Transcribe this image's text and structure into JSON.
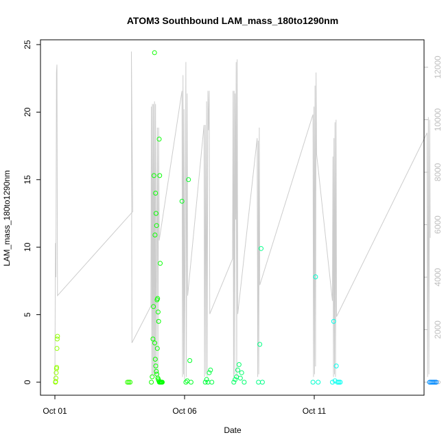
{
  "chart_data": {
    "type": "scatter",
    "title": "ATOM3 Southbound LAM_mass_180to1290nm",
    "xlabel": "Date",
    "ylabel": "LAM_mass_180to1290nm",
    "x_unit": "days since Sep 30",
    "xlim": [
      1,
      15.9
    ],
    "ylim": [
      0,
      25
    ],
    "y_ticks": [
      0,
      5,
      10,
      15,
      20,
      25
    ],
    "x_ticks": [
      {
        "value": 1,
        "label": "Oct 01"
      },
      {
        "value": 6,
        "label": "Oct 06"
      },
      {
        "value": 11,
        "label": "Oct 11"
      }
    ],
    "y2lim": [
      0,
      12500
    ],
    "y2_ticks": [
      0,
      2000,
      4000,
      6000,
      8000,
      10000,
      12000
    ],
    "grid": false,
    "series": [
      {
        "name": "LAM_mass_180to1290nm",
        "style": "open-circles",
        "points": [
          {
            "x": 1.02,
            "y": 0
          },
          {
            "x": 1.03,
            "y": 0.05
          },
          {
            "x": 1.04,
            "y": 0.3
          },
          {
            "x": 1.05,
            "y": 0.7
          },
          {
            "x": 1.06,
            "y": 1.0
          },
          {
            "x": 1.07,
            "y": 1.1
          },
          {
            "x": 1.08,
            "y": 2.5
          },
          {
            "x": 1.09,
            "y": 3.2
          },
          {
            "x": 1.1,
            "y": 3.4
          },
          {
            "x": 3.8,
            "y": 0
          },
          {
            "x": 3.85,
            "y": 0
          },
          {
            "x": 3.9,
            "y": 0
          },
          {
            "x": 4.72,
            "y": 0
          },
          {
            "x": 4.75,
            "y": 0.4
          },
          {
            "x": 4.78,
            "y": 3.2
          },
          {
            "x": 4.8,
            "y": 5.6
          },
          {
            "x": 4.82,
            "y": 15.3
          },
          {
            "x": 4.84,
            "y": 24.4
          },
          {
            "x": 4.86,
            "y": 10.9
          },
          {
            "x": 4.88,
            "y": 14.0
          },
          {
            "x": 4.9,
            "y": 12.5
          },
          {
            "x": 4.92,
            "y": 11.6
          },
          {
            "x": 4.94,
            "y": 6.1
          },
          {
            "x": 4.96,
            "y": 6.2
          },
          {
            "x": 4.98,
            "y": 5.2
          },
          {
            "x": 5.0,
            "y": 4.5
          },
          {
            "x": 5.02,
            "y": 18.0
          },
          {
            "x": 5.04,
            "y": 15.3
          },
          {
            "x": 5.06,
            "y": 8.8
          },
          {
            "x": 4.85,
            "y": 2.9
          },
          {
            "x": 4.87,
            "y": 1.7
          },
          {
            "x": 4.89,
            "y": 1.2
          },
          {
            "x": 4.91,
            "y": 0.8
          },
          {
            "x": 4.93,
            "y": 0.6
          },
          {
            "x": 4.95,
            "y": 2.5
          },
          {
            "x": 4.97,
            "y": 0.3
          },
          {
            "x": 4.99,
            "y": 0.2
          },
          {
            "x": 5.01,
            "y": 0.1
          },
          {
            "x": 5.03,
            "y": 0
          },
          {
            "x": 5.05,
            "y": 0
          },
          {
            "x": 5.08,
            "y": 0
          },
          {
            "x": 5.1,
            "y": 0
          },
          {
            "x": 5.12,
            "y": 0
          },
          {
            "x": 5.14,
            "y": 0
          },
          {
            "x": 5.9,
            "y": 13.4
          },
          {
            "x": 6.05,
            "y": 0
          },
          {
            "x": 6.1,
            "y": 0.1
          },
          {
            "x": 6.15,
            "y": 15.0
          },
          {
            "x": 6.2,
            "y": 1.6
          },
          {
            "x": 6.25,
            "y": 0
          },
          {
            "x": 6.8,
            "y": 0
          },
          {
            "x": 6.85,
            "y": 0.2
          },
          {
            "x": 6.9,
            "y": 0
          },
          {
            "x": 6.95,
            "y": 0.7
          },
          {
            "x": 7.0,
            "y": 0.9
          },
          {
            "x": 7.05,
            "y": 0
          },
          {
            "x": 7.9,
            "y": 0
          },
          {
            "x": 7.95,
            "y": 0.2
          },
          {
            "x": 8.0,
            "y": 0.4
          },
          {
            "x": 8.05,
            "y": 0.9
          },
          {
            "x": 8.1,
            "y": 1.3
          },
          {
            "x": 8.15,
            "y": 0.3
          },
          {
            "x": 8.2,
            "y": 0.7
          },
          {
            "x": 8.3,
            "y": 0
          },
          {
            "x": 8.85,
            "y": 0
          },
          {
            "x": 8.9,
            "y": 2.8
          },
          {
            "x": 8.95,
            "y": 9.9
          },
          {
            "x": 9.0,
            "y": 0
          },
          {
            "x": 10.95,
            "y": 0
          },
          {
            "x": 11.05,
            "y": 7.8
          },
          {
            "x": 11.15,
            "y": 0
          },
          {
            "x": 11.7,
            "y": 0
          },
          {
            "x": 11.75,
            "y": 4.5
          },
          {
            "x": 11.8,
            "y": 0.1
          },
          {
            "x": 11.85,
            "y": 1.2
          },
          {
            "x": 11.9,
            "y": 0
          },
          {
            "x": 11.95,
            "y": 0
          },
          {
            "x": 12.0,
            "y": 0
          },
          {
            "x": 15.45,
            "y": 0
          },
          {
            "x": 15.5,
            "y": 0
          },
          {
            "x": 15.55,
            "y": 0
          },
          {
            "x": 15.6,
            "y": 0
          },
          {
            "x": 15.65,
            "y": 0
          },
          {
            "x": 15.7,
            "y": 0
          }
        ]
      },
      {
        "name": "altitude (right axis)",
        "style": "line",
        "axis": "right",
        "points": [
          {
            "x": 1.0,
            "y": 0
          },
          {
            "x": 1.02,
            "y": 5300
          },
          {
            "x": 1.04,
            "y": 4000
          },
          {
            "x": 1.06,
            "y": 11800
          },
          {
            "x": 1.08,
            "y": 12100
          },
          {
            "x": 1.1,
            "y": 3300
          },
          {
            "x": 4.0,
            "y": 6500
          },
          {
            "x": 3.95,
            "y": 12600
          },
          {
            "x": 3.97,
            "y": 1500
          },
          {
            "x": 4.7,
            "y": 2900
          },
          {
            "x": 4.72,
            "y": 10500
          },
          {
            "x": 4.74,
            "y": 200
          },
          {
            "x": 4.76,
            "y": 10600
          },
          {
            "x": 4.78,
            "y": 300
          },
          {
            "x": 4.8,
            "y": 10600
          },
          {
            "x": 4.82,
            "y": 200
          },
          {
            "x": 4.84,
            "y": 10700
          },
          {
            "x": 4.86,
            "y": 300
          },
          {
            "x": 4.88,
            "y": 10600
          },
          {
            "x": 4.9,
            "y": 100
          },
          {
            "x": 4.95,
            "y": 9700
          },
          {
            "x": 4.97,
            "y": 200
          },
          {
            "x": 5.0,
            "y": 9700
          },
          {
            "x": 5.02,
            "y": 5400
          },
          {
            "x": 5.9,
            "y": 11100
          },
          {
            "x": 5.92,
            "y": 200
          },
          {
            "x": 5.94,
            "y": 11700
          },
          {
            "x": 5.96,
            "y": 300
          },
          {
            "x": 5.98,
            "y": 10400
          },
          {
            "x": 6.0,
            "y": 100
          },
          {
            "x": 6.05,
            "y": 12200
          },
          {
            "x": 6.07,
            "y": 200
          },
          {
            "x": 6.1,
            "y": 11000
          },
          {
            "x": 6.12,
            "y": 3300
          },
          {
            "x": 6.75,
            "y": 9800
          },
          {
            "x": 6.77,
            "y": 200
          },
          {
            "x": 6.8,
            "y": 9800
          },
          {
            "x": 6.82,
            "y": 300
          },
          {
            "x": 6.85,
            "y": 10700
          },
          {
            "x": 6.87,
            "y": 200
          },
          {
            "x": 6.9,
            "y": 11100
          },
          {
            "x": 6.92,
            "y": 9600
          },
          {
            "x": 6.95,
            "y": 11100
          },
          {
            "x": 6.97,
            "y": 2600
          },
          {
            "x": 7.85,
            "y": 4700
          },
          {
            "x": 7.87,
            "y": 11100
          },
          {
            "x": 7.89,
            "y": 200
          },
          {
            "x": 7.91,
            "y": 11100
          },
          {
            "x": 7.93,
            "y": 300
          },
          {
            "x": 7.95,
            "y": 11000
          },
          {
            "x": 7.97,
            "y": 6200
          },
          {
            "x": 7.99,
            "y": 12200
          },
          {
            "x": 8.01,
            "y": 200
          },
          {
            "x": 8.03,
            "y": 12300
          },
          {
            "x": 8.05,
            "y": 2600
          },
          {
            "x": 8.8,
            "y": 9300
          },
          {
            "x": 8.82,
            "y": 200
          },
          {
            "x": 8.84,
            "y": 9200
          },
          {
            "x": 8.86,
            "y": 300
          },
          {
            "x": 8.88,
            "y": 9700
          },
          {
            "x": 8.9,
            "y": 3700
          },
          {
            "x": 10.95,
            "y": 10200
          },
          {
            "x": 10.97,
            "y": 200
          },
          {
            "x": 10.99,
            "y": 10500
          },
          {
            "x": 11.01,
            "y": 300
          },
          {
            "x": 11.03,
            "y": 11300
          },
          {
            "x": 11.05,
            "y": 600
          },
          {
            "x": 11.07,
            "y": 11800
          },
          {
            "x": 11.09,
            "y": 8700
          },
          {
            "x": 11.7,
            "y": 3100
          },
          {
            "x": 11.72,
            "y": 8600
          },
          {
            "x": 11.74,
            "y": 200
          },
          {
            "x": 11.76,
            "y": 9300
          },
          {
            "x": 11.78,
            "y": 300
          },
          {
            "x": 11.8,
            "y": 9900
          },
          {
            "x": 11.82,
            "y": 200
          },
          {
            "x": 11.84,
            "y": 10000
          },
          {
            "x": 11.86,
            "y": 2500
          },
          {
            "x": 15.35,
            "y": 9500
          },
          {
            "x": 15.37,
            "y": 200
          },
          {
            "x": 15.4,
            "y": 10100
          },
          {
            "x": 15.42,
            "y": 300
          },
          {
            "x": 15.45,
            "y": 10000
          },
          {
            "x": 15.47,
            "y": 5500
          }
        ]
      }
    ]
  }
}
